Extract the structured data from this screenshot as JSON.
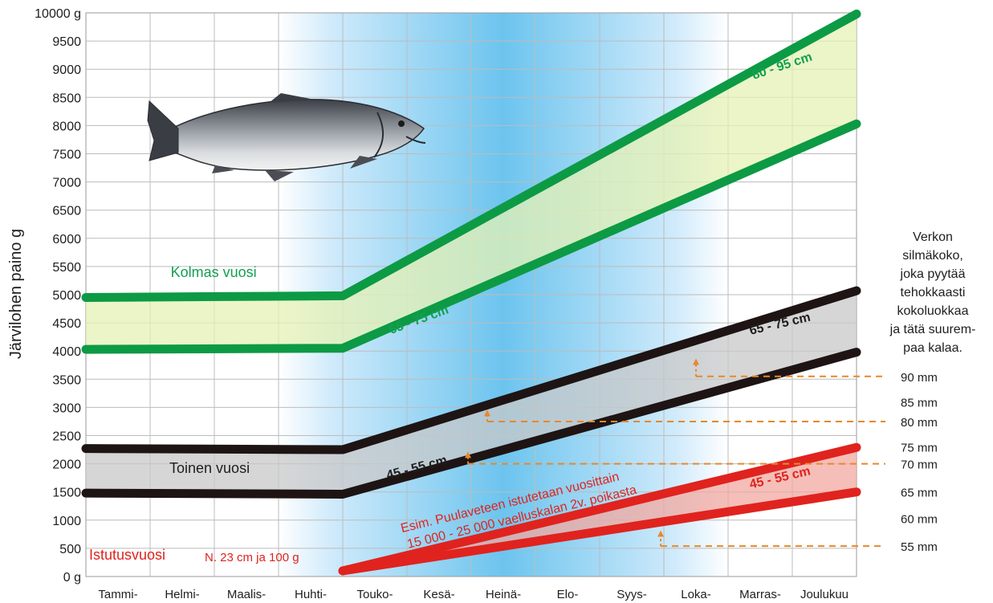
{
  "chart_data": {
    "type": "line",
    "ylabel": "Järvilohen paino g",
    "ylim": [
      0,
      10000
    ],
    "y_ticks": [
      {
        "value": 0,
        "label": "0 g"
      },
      {
        "value": 500,
        "label": "500"
      },
      {
        "value": 1000,
        "label": "1000"
      },
      {
        "value": 1500,
        "label": "1500"
      },
      {
        "value": 2000,
        "label": "2000"
      },
      {
        "value": 2500,
        "label": "2500"
      },
      {
        "value": 3000,
        "label": "3000"
      },
      {
        "value": 3500,
        "label": "3500"
      },
      {
        "value": 4000,
        "label": "4000"
      },
      {
        "value": 4500,
        "label": "4500"
      },
      {
        "value": 5000,
        "label": "5000"
      },
      {
        "value": 5500,
        "label": "5500"
      },
      {
        "value": 6000,
        "label": "6000"
      },
      {
        "value": 6500,
        "label": "6500"
      },
      {
        "value": 7000,
        "label": "7000"
      },
      {
        "value": 7500,
        "label": "7500"
      },
      {
        "value": 8000,
        "label": "8000"
      },
      {
        "value": 8500,
        "label": "8500"
      },
      {
        "value": 9000,
        "label": "9000"
      },
      {
        "value": 9500,
        "label": "9500"
      },
      {
        "value": 10000,
        "label": "10000 g"
      }
    ],
    "categories": [
      "Tammi-",
      "Helmi-",
      "Maalis-",
      "Huhti-",
      "Touko-",
      "Kesä-",
      "Heinä-",
      "Elo-",
      "Syys-",
      "Loka-",
      "Marras-",
      "Joulukuu"
    ],
    "grid": true,
    "series": [
      {
        "group": "Kolmas vuosi",
        "bound": "upper",
        "color": "#0d9a44",
        "points": [
          [
            0,
            4950
          ],
          [
            4,
            4980
          ],
          [
            12,
            9980
          ]
        ]
      },
      {
        "group": "Kolmas vuosi",
        "bound": "lower",
        "color": "#0d9a44",
        "points": [
          [
            0,
            4030
          ],
          [
            4,
            4050
          ],
          [
            12,
            8030
          ]
        ]
      },
      {
        "group": "Toinen vuosi",
        "bound": "upper",
        "color": "#1e1414",
        "points": [
          [
            0,
            2270
          ],
          [
            4,
            2250
          ],
          [
            12,
            5070
          ]
        ]
      },
      {
        "group": "Toinen vuosi",
        "bound": "lower",
        "color": "#1e1414",
        "points": [
          [
            0,
            1480
          ],
          [
            4,
            1460
          ],
          [
            12,
            3980
          ]
        ]
      },
      {
        "group": "Istutusvuosi",
        "bound": "upper",
        "color": "#e0231e",
        "points": [
          [
            4,
            100
          ],
          [
            12,
            2290
          ]
        ]
      },
      {
        "group": "Istutusvuosi",
        "bound": "lower",
        "color": "#e0231e",
        "points": [
          [
            4,
            100
          ],
          [
            12,
            1500
          ]
        ]
      }
    ],
    "bands": [
      {
        "name": "Kolmas vuosi",
        "fill": "#e6f2b4",
        "points": [
          [
            0,
            4950
          ],
          [
            4,
            4980
          ],
          [
            12,
            9980
          ],
          [
            12,
            8030
          ],
          [
            4,
            4050
          ],
          [
            0,
            4030
          ]
        ]
      },
      {
        "name": "Toinen vuosi",
        "fill": "#c8c8c8",
        "points": [
          [
            0,
            2270
          ],
          [
            4,
            2250
          ],
          [
            12,
            5070
          ],
          [
            12,
            3980
          ],
          [
            4,
            1460
          ],
          [
            0,
            1480
          ]
        ]
      },
      {
        "name": "Istutusvuosi",
        "fill": "#f2a8a0",
        "points": [
          [
            4,
            100
          ],
          [
            12,
            2290
          ],
          [
            12,
            1500
          ]
        ]
      }
    ],
    "group_labels": [
      {
        "text": "Kolmas vuosi",
        "color": "#12a050",
        "at": [
          1.32,
          5310
        ]
      },
      {
        "text": "Toinen vuosi",
        "color": "#1e1e1e",
        "at": [
          1.3,
          1840
        ]
      },
      {
        "text": "Istutusvuosi",
        "color": "#e0231e",
        "at": [
          0.05,
          300
        ]
      },
      {
        "text": "N. 23 cm ja 100 g",
        "color": "#e0231e",
        "at": [
          1.85,
          270
        ]
      }
    ],
    "length_labels": [
      {
        "text": "80 - 95 cm",
        "color": "#12a050",
        "at": [
          10.4,
          8820
        ],
        "rotate": -18
      },
      {
        "text": "65 - 75 cm",
        "color": "#12a050",
        "at": [
          4.75,
          4300
        ],
        "rotate": -20
      },
      {
        "text": "65 - 75 cm",
        "color": "#1e1e1e",
        "at": [
          10.35,
          4290
        ],
        "rotate": -13
      },
      {
        "text": "45 - 55 cm",
        "color": "#1e1e1e",
        "at": [
          4.7,
          1720
        ],
        "rotate": -15
      },
      {
        "text": "45 - 55 cm",
        "color": "#e0231e",
        "at": [
          10.35,
          1560
        ],
        "rotate": -13
      }
    ],
    "annotations": [
      {
        "text": "Esim. Puulaveteen istutetaan vuosittain",
        "color": "#e0231e",
        "at": [
          4.92,
          780
        ],
        "rotate": -13.5
      },
      {
        "text": "15 000 - 25 000 vaelluskalan 2v. poikasta",
        "color": "#e0231e",
        "at": [
          5.02,
          500
        ],
        "rotate": -13.5
      }
    ],
    "mesh_note": [
      "Verkon",
      "silmäkoko,",
      "joka pyytää",
      "tehokkaasti",
      "kokoluokkaa",
      "ja tätä suurem-",
      "paa kalaa."
    ],
    "mesh_sizes": [
      {
        "label": "90 mm",
        "value": 3550,
        "marker": [
          9.5,
          3810
        ],
        "arrow": true
      },
      {
        "label": "85 mm",
        "value": 3100,
        "arrow": false
      },
      {
        "label": "80 mm",
        "value": 2750,
        "marker": [
          6.25,
          2900
        ],
        "arrow": true
      },
      {
        "label": "75 mm",
        "value": 2300,
        "arrow": false
      },
      {
        "label": "70 mm",
        "value": 2000,
        "marker": [
          5.95,
          2160
        ],
        "arrow": true
      },
      {
        "label": "65 mm",
        "value": 1500,
        "arrow": false
      },
      {
        "label": "60 mm",
        "value": 1030,
        "arrow": false
      },
      {
        "label": "55 mm",
        "value": 540,
        "marker": [
          8.95,
          760
        ],
        "arrow": true
      }
    ],
    "colors": {
      "arrow": "#e8882a",
      "summer_blue": "#6cc4ee",
      "grid": "#bcbcbc"
    }
  }
}
